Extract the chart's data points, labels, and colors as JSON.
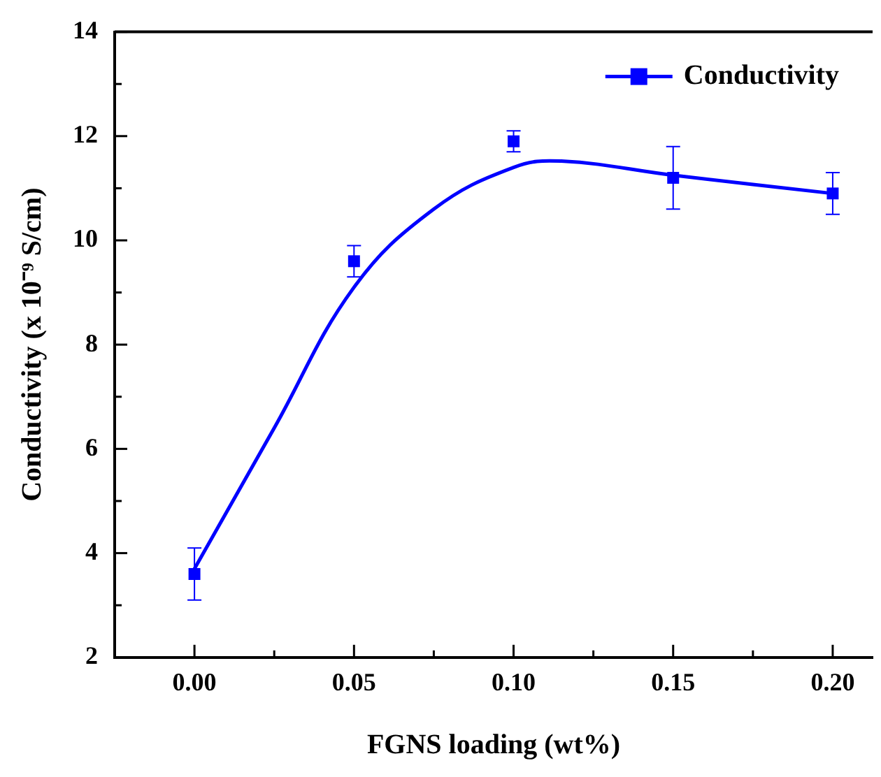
{
  "chart_data": {
    "type": "scatter",
    "xlabel": "FGNS loading (wt%)",
    "ylabel": "Conductivity (x 10⁻⁹ S/cm)",
    "xlim": [
      -0.025,
      0.2125
    ],
    "xticks": [
      {
        "value": 0,
        "label": "0.00"
      },
      {
        "value": 0.025,
        "label": null
      },
      {
        "value": 0.05,
        "label": "0.05"
      },
      {
        "value": 0.075,
        "label": null
      },
      {
        "value": 0.1,
        "label": "0.10"
      },
      {
        "value": 0.125,
        "label": null
      },
      {
        "value": 0.15,
        "label": "0.15"
      },
      {
        "value": 0.175,
        "label": null
      },
      {
        "value": 0.2,
        "label": "0.20"
      }
    ],
    "ylim": [
      2,
      14
    ],
    "yticks": [
      2,
      {
        "value": 3,
        "label": null
      },
      4,
      {
        "value": 5,
        "label": null
      },
      6,
      {
        "value": 7,
        "label": null
      },
      8,
      {
        "value": 9,
        "label": null
      },
      10,
      {
        "value": 11,
        "label": null
      },
      12,
      {
        "value": 13,
        "label": null
      },
      14
    ],
    "grid": false,
    "legend": "top right",
    "marker": "square",
    "series": [
      {
        "name": "Conductivity",
        "color": "#0000ff",
        "x": [
          0,
          0.05,
          0.1,
          0.15,
          0.2
        ],
        "values": [
          3.6,
          9.6,
          11.9,
          11.2,
          10.9
        ],
        "errors": [
          0.5,
          0.3,
          0.2,
          0.6,
          0.4
        ]
      },
      {
        "type": "line",
        "color": "#0000ff",
        "marker": "none",
        "x": [
          0,
          0.025,
          0.05,
          0.075,
          0.1,
          0.115,
          0.15,
          0.2
        ],
        "values": [
          3.7,
          6.4,
          9.1,
          10.6,
          11.4,
          11.52,
          11.25,
          10.9
        ]
      }
    ]
  }
}
